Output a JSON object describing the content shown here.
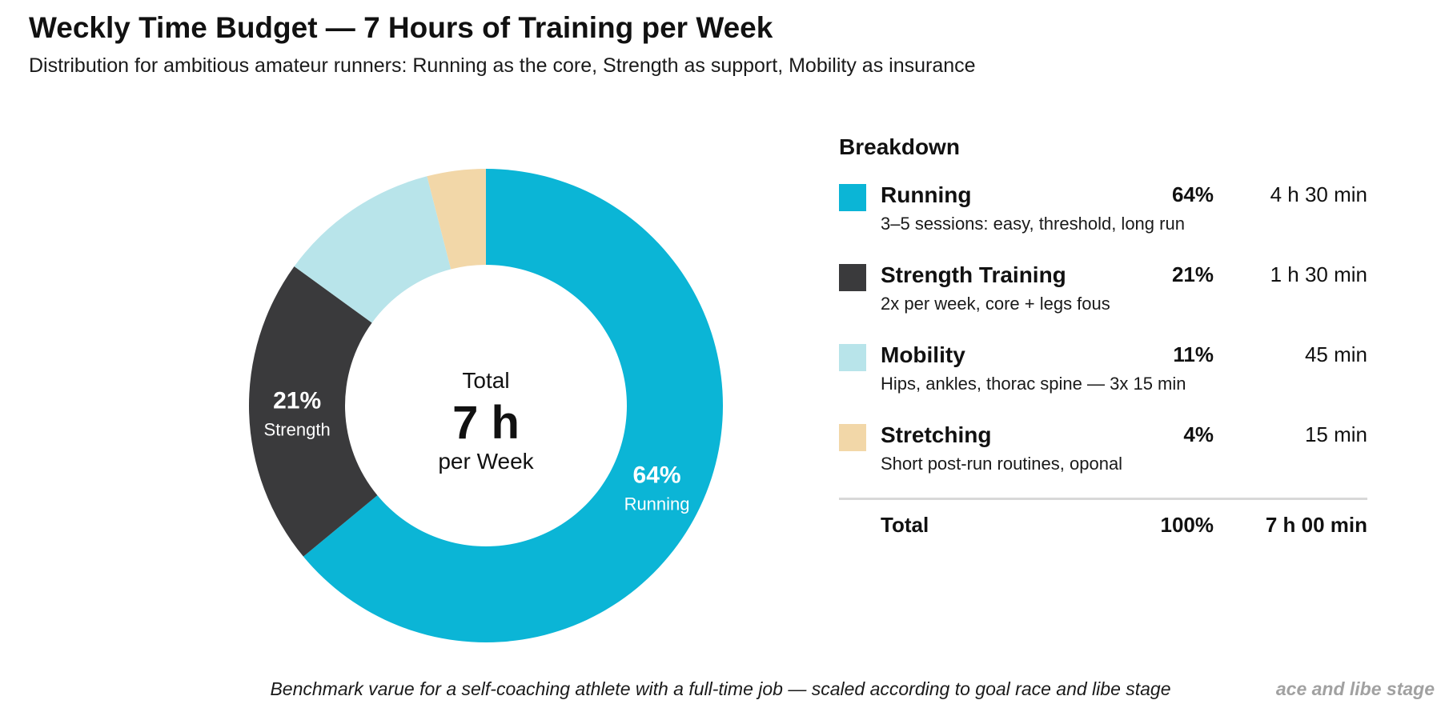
{
  "header": {
    "title": "Weckly Time Budget — 7 Hours of Training per Week",
    "subtitle": "Distribution for ambitious amateur runners: Running as the core, Strength as support, Mobility as insurance"
  },
  "chart_data": {
    "type": "pie",
    "donut": true,
    "center": {
      "line1": "Total",
      "line2": "7 h",
      "line3": "per Week"
    },
    "slices": [
      {
        "name": "Running",
        "short_label": "Running",
        "percent": 64,
        "color": "#0bb5d6",
        "show_on_chart": true,
        "text_color": "#ffffff"
      },
      {
        "name": "Strength Training",
        "short_label": "Strength",
        "percent": 21,
        "color": "#3a3a3c",
        "show_on_chart": true,
        "text_color": "#ffffff"
      },
      {
        "name": "Mobility",
        "short_label": "Mobility",
        "percent": 11,
        "color": "#b8e4ea",
        "show_on_chart": false,
        "text_color": "#333333"
      },
      {
        "name": "Stretching",
        "short_label": "Stretching",
        "percent": 4,
        "color": "#f2d7a8",
        "show_on_chart": false,
        "text_color": "#333333"
      }
    ]
  },
  "legend": {
    "title": "Breakdown",
    "items": [
      {
        "label": "Running",
        "percent": "64%",
        "duration": "4 h 30 min",
        "description": "3–5 sessions: easy, threshold, long run",
        "color": "#0bb5d6"
      },
      {
        "label": "Strength Training",
        "percent": "21%",
        "duration": "1 h 30 min",
        "description": "2x per week, core + legs fous",
        "color": "#3a3a3c"
      },
      {
        "label": "Mobility",
        "percent": "11%",
        "duration": "45 min",
        "description": "Hips, ankles, thorac spine — 3x 15 min",
        "color": "#b8e4ea"
      },
      {
        "label": "Stretching",
        "percent": "4%",
        "duration": "15 min",
        "description": "Short post-run routines, oponal",
        "color": "#f2d7a8"
      }
    ],
    "total": {
      "label": "Total",
      "percent": "100%",
      "duration": "7 h 00 min"
    }
  },
  "footer": {
    "note": "Benchmark varue for a self-coaching athlete with a full-time job — scaled according to goal race and libe stage",
    "ghost": "ace and libe stage"
  }
}
